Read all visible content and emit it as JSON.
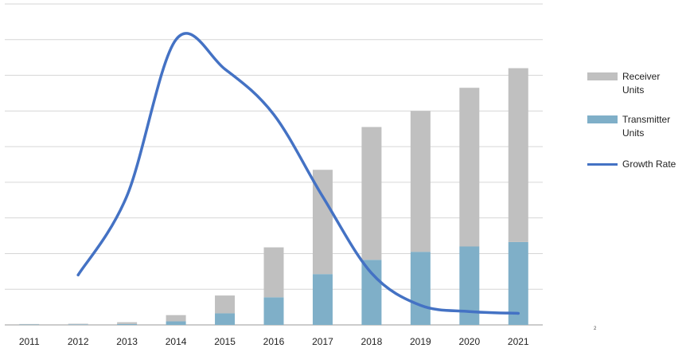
{
  "chart_data": {
    "type": "bar",
    "stacked": true,
    "categories": [
      "2011",
      "2012",
      "2013",
      "2014",
      "2015",
      "2016",
      "2017",
      "2018",
      "2019",
      "2020",
      "2021"
    ],
    "ylim": [
      0,
      360
    ],
    "grid": true,
    "legend_position": "right",
    "series": [
      {
        "name": "Transmitter Units",
        "kind": "bar",
        "color": "#7fafc8",
        "values": [
          0.4,
          0.5,
          1,
          4,
          13,
          31,
          57,
          73,
          82,
          88,
          93
        ]
      },
      {
        "name": "Receiver Units",
        "kind": "bar",
        "color": "#c0c0c0",
        "values": [
          0.6,
          0.8,
          2,
          7,
          20,
          56,
          117,
          149,
          158,
          178,
          195
        ]
      },
      {
        "name": "Growth Rate",
        "kind": "line",
        "color": "#4472c4",
        "values": [
          null,
          56,
          145,
          320,
          287,
          236,
          144,
          58,
          22,
          15,
          13
        ]
      }
    ]
  },
  "footnote": "2"
}
